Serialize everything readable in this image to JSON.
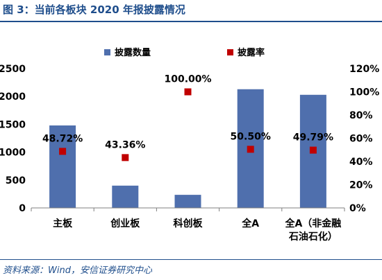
{
  "figure": {
    "title": "图 3：当前各板块 2020 年报披露情况",
    "source": "资料来源：Wind，安信证券研究中心"
  },
  "chart_data": {
    "type": "bar",
    "categories": [
      "主板",
      "创业板",
      "科创板",
      "全A",
      [
        "全A（非金融",
        "石油石化）"
      ]
    ],
    "series": [
      {
        "name": "披露数量",
        "type": "bar",
        "axis": "left",
        "color": "#4f6fad",
        "values": [
          1480,
          400,
          235,
          2130,
          2030
        ]
      },
      {
        "name": "披露率",
        "type": "scatter",
        "axis": "right",
        "color": "#c00000",
        "values": [
          48.72,
          43.36,
          100.0,
          50.5,
          49.79
        ],
        "labels": [
          "48.72%",
          "43.36%",
          "100.00%",
          "50.50%",
          "49.79%"
        ]
      }
    ],
    "y_left": {
      "min": 0,
      "max": 2500,
      "ticks": [
        "0",
        "500",
        "1000",
        "1500",
        "2000",
        "2500"
      ]
    },
    "y_right": {
      "min": 0,
      "max": 120,
      "ticks": [
        "0%",
        "20%",
        "40%",
        "60%",
        "80%",
        "100%",
        "120%"
      ]
    },
    "grid": false,
    "legend_position": "top"
  }
}
